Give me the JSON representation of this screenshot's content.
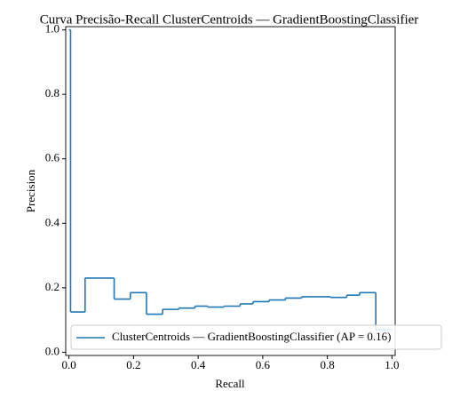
{
  "chart_data": {
    "type": "step",
    "title": "Curva Precisão-Recall ClusterCentroids — GradientBoostingClassifier",
    "x_label": "Recall",
    "y_label": "Precision",
    "series": [
      {
        "name": "ClusterCentroids — GradientBoostingClassifier (AP = 0.16)",
        "color": "#1f77b4",
        "x": [
          0,
          0.005,
          0.05,
          0.14,
          0.19,
          0.24,
          0.29,
          0.34,
          0.39,
          0.43,
          0.48,
          0.53,
          0.57,
          0.62,
          0.67,
          0.72,
          0.81,
          0.86,
          0.9,
          0.95,
          1.0
        ],
        "values": [
          1.0,
          0.125,
          0.23,
          0.165,
          0.185,
          0.118,
          0.133,
          0.137,
          0.143,
          0.14,
          0.143,
          0.15,
          0.157,
          0.162,
          0.168,
          0.172,
          0.17,
          0.177,
          0.185,
          0.07,
          0.07
        ]
      }
    ],
    "xlim": [
      -0.01,
      1.01
    ],
    "ylim": [
      -0.01,
      1.01
    ],
    "xticks": [
      {
        "value": 0,
        "label": "0.0"
      },
      0.2,
      0.4,
      0.6,
      0.8,
      {
        "value": 1,
        "label": "1.0"
      }
    ],
    "yticks": [
      {
        "value": 0,
        "label": "0.0"
      },
      0.2,
      0.4,
      0.6,
      0.8,
      {
        "value": 1,
        "label": "1.0"
      }
    ],
    "legend": "lower right"
  }
}
